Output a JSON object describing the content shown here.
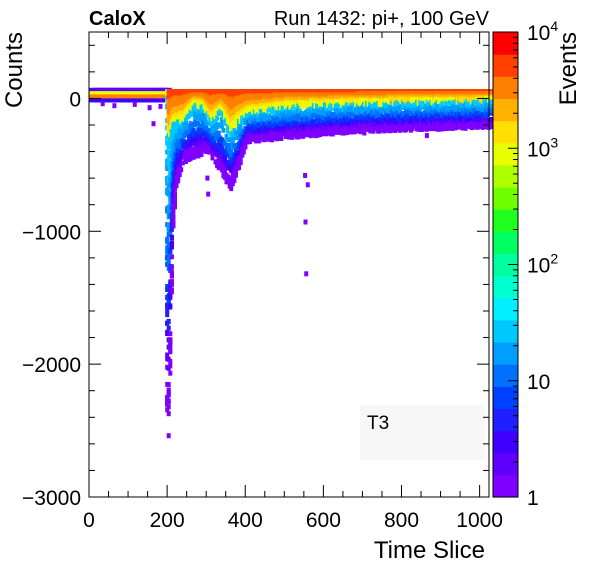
{
  "header": {
    "left_title": "CaloX",
    "right_title": "Run 1432: pi+, 100 GeV"
  },
  "panel_label": "T3",
  "chart_data": {
    "type": "heatmap",
    "title": "",
    "xlabel": "Time Slice",
    "ylabel": "Counts",
    "zlabel": "Events",
    "xlim": [
      0,
      1024
    ],
    "ylim": [
      -3000,
      500
    ],
    "x_ticks": [
      {
        "value": 0,
        "label": "0"
      },
      {
        "value": 200,
        "label": "200"
      },
      {
        "value": 400,
        "label": "400"
      },
      {
        "value": 600,
        "label": "600"
      },
      {
        "value": 800,
        "label": "800"
      },
      {
        "value": 1000,
        "label": "1000"
      }
    ],
    "y_ticks": [
      {
        "value": 0,
        "label": "0"
      },
      {
        "value": -1000,
        "label": "−1000"
      },
      {
        "value": -2000,
        "label": "−2000"
      },
      {
        "value": -3000,
        "label": "−3000"
      }
    ],
    "z_scale": "log",
    "zlim": [
      1,
      10000
    ],
    "z_ticks": [
      {
        "value": 1,
        "base": "1",
        "exp": ""
      },
      {
        "value": 10,
        "base": "10",
        "exp": ""
      },
      {
        "value": 100,
        "base": "10",
        "exp": "2"
      },
      {
        "value": 1000,
        "base": "10",
        "exp": "3"
      },
      {
        "value": 10000,
        "base": "10",
        "exp": "4"
      }
    ],
    "colors": [
      "#7f00ff",
      "#5f00ff",
      "#3f00ff",
      "#1f1fff",
      "#0040ff",
      "#0070ff",
      "#009fff",
      "#00c8ff",
      "#00f0ff",
      "#00ffd0",
      "#00ffa0",
      "#00ff60",
      "#20ff20",
      "#70ff00",
      "#b0ff00",
      "#e8ff00",
      "#ffe000",
      "#ffb000",
      "#ff8000",
      "#ff4000",
      "#ff0000"
    ],
    "pedestal": {
      "x_range": [
        0,
        195
      ],
      "y": 40,
      "z": 3000
    },
    "pulse_profile": [
      {
        "x": 195,
        "y": 0
      },
      {
        "x": 200,
        "y": -350
      },
      {
        "x": 210,
        "y": -200
      },
      {
        "x": 240,
        "y": -150
      },
      {
        "x": 265,
        "y": -40
      },
      {
        "x": 290,
        "y": -60
      },
      {
        "x": 310,
        "y": -170
      },
      {
        "x": 335,
        "y": -80
      },
      {
        "x": 360,
        "y": -230
      },
      {
        "x": 400,
        "y": -110
      },
      {
        "x": 500,
        "y": -60
      },
      {
        "x": 700,
        "y": -35
      },
      {
        "x": 1024,
        "y": -20
      }
    ],
    "min_envelope": [
      {
        "x": 200,
        "y": -2550
      },
      {
        "x": 210,
        "y": -1000
      },
      {
        "x": 220,
        "y": -650
      },
      {
        "x": 240,
        "y": -480
      },
      {
        "x": 300,
        "y": -400
      },
      {
        "x": 360,
        "y": -700
      },
      {
        "x": 400,
        "y": -330
      },
      {
        "x": 500,
        "y": -300
      },
      {
        "x": 700,
        "y": -250
      },
      {
        "x": 1024,
        "y": -220
      }
    ]
  }
}
